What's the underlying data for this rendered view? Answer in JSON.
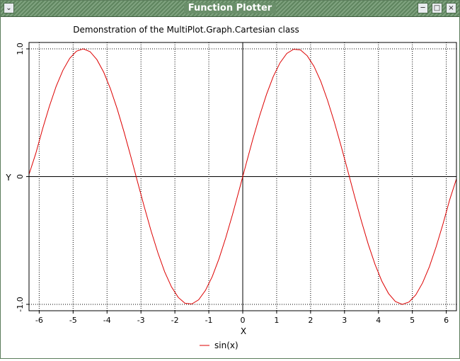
{
  "window": {
    "title": "Function Plotter",
    "icons": {
      "menu": "chevron-down-icon",
      "minimize": "minimize-icon",
      "maximize": "maximize-icon",
      "close": "close-icon"
    }
  },
  "chart_data": {
    "type": "line",
    "title": "Demonstration of the MultiPlot.Graph.Cartesian class",
    "xlabel": "X",
    "ylabel": "Y",
    "xlim": [
      -6.3,
      6.3
    ],
    "ylim": [
      -1.05,
      1.05
    ],
    "x_ticks": [
      -6,
      -5,
      -4,
      -3,
      -2,
      -1,
      0,
      1,
      2,
      3,
      4,
      5,
      6
    ],
    "x_tick_labels": [
      "-6",
      "-5",
      "-4",
      "-3",
      "-2",
      "-1",
      "0",
      "1",
      "2",
      "3",
      "4",
      "5",
      "6"
    ],
    "y_ticks": [
      -1.0,
      0,
      1.0
    ],
    "y_tick_labels": [
      "-1.0",
      "0",
      "1.0"
    ],
    "grid": true,
    "legend_position": "bottom-center",
    "series": [
      {
        "name": "sin(x)",
        "color": "#dd0000",
        "points": [
          [
            -6.3,
            0.017
          ],
          [
            -6.1,
            0.182
          ],
          [
            -5.9,
            0.374
          ],
          [
            -5.7,
            0.551
          ],
          [
            -5.5,
            0.706
          ],
          [
            -5.3,
            0.832
          ],
          [
            -5.1,
            0.926
          ],
          [
            -4.9,
            0.982
          ],
          [
            -4.7,
            1.0
          ],
          [
            -4.5,
            0.978
          ],
          [
            -4.3,
            0.916
          ],
          [
            -4.1,
            0.818
          ],
          [
            -3.9,
            0.688
          ],
          [
            -3.7,
            0.53
          ],
          [
            -3.5,
            0.351
          ],
          [
            -3.3,
            0.158
          ],
          [
            -3.1,
            -0.042
          ],
          [
            -2.9,
            -0.239
          ],
          [
            -2.7,
            -0.427
          ],
          [
            -2.5,
            -0.598
          ],
          [
            -2.3,
            -0.746
          ],
          [
            -2.1,
            -0.863
          ],
          [
            -1.9,
            -0.946
          ],
          [
            -1.7,
            -0.992
          ],
          [
            -1.5,
            -0.997
          ],
          [
            -1.3,
            -0.964
          ],
          [
            -1.1,
            -0.891
          ],
          [
            -0.9,
            -0.783
          ],
          [
            -0.7,
            -0.644
          ],
          [
            -0.5,
            -0.479
          ],
          [
            -0.3,
            -0.296
          ],
          [
            -0.1,
            -0.1
          ],
          [
            0.1,
            0.1
          ],
          [
            0.3,
            0.296
          ],
          [
            0.5,
            0.479
          ],
          [
            0.7,
            0.644
          ],
          [
            0.9,
            0.783
          ],
          [
            1.1,
            0.891
          ],
          [
            1.3,
            0.964
          ],
          [
            1.5,
            0.997
          ],
          [
            1.7,
            0.992
          ],
          [
            1.9,
            0.946
          ],
          [
            2.1,
            0.863
          ],
          [
            2.3,
            0.746
          ],
          [
            2.5,
            0.598
          ],
          [
            2.7,
            0.427
          ],
          [
            2.9,
            0.239
          ],
          [
            3.1,
            0.042
          ],
          [
            3.3,
            -0.158
          ],
          [
            3.5,
            -0.351
          ],
          [
            3.7,
            -0.53
          ],
          [
            3.9,
            -0.688
          ],
          [
            4.1,
            -0.818
          ],
          [
            4.3,
            -0.916
          ],
          [
            4.5,
            -0.978
          ],
          [
            4.7,
            -1.0
          ],
          [
            4.9,
            -0.982
          ],
          [
            5.1,
            -0.926
          ],
          [
            5.3,
            -0.832
          ],
          [
            5.5,
            -0.706
          ],
          [
            5.7,
            -0.551
          ],
          [
            5.9,
            -0.374
          ],
          [
            6.1,
            -0.182
          ],
          [
            6.3,
            -0.017
          ]
        ]
      }
    ]
  }
}
